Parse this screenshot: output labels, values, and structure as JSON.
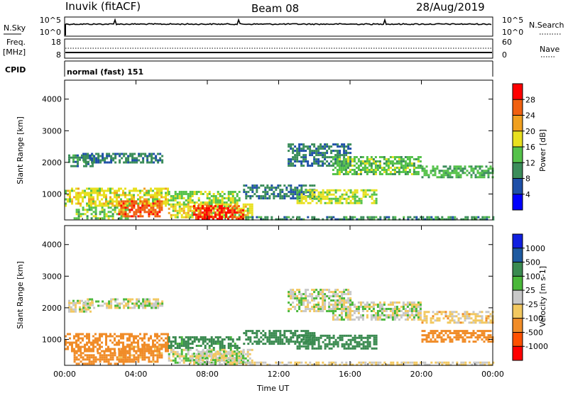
{
  "header": {
    "station": "Inuvik (fitACF)",
    "beam": "Beam 08",
    "date": "28/Aug/2019"
  },
  "labels": {
    "nsky": "N.Sky",
    "nsearch": "N.Search",
    "freq_top": "Freq.",
    "freq_unit": "[MHz]",
    "nave": "Nave",
    "cpid": "CPID",
    "cpid_value": "normal (fast) 151",
    "noise_ticks_left": [
      "10^5",
      "10^0"
    ],
    "noise_ticks_right": [
      "10^5",
      "10^0"
    ],
    "freq_ticks_left": [
      "18",
      "8"
    ],
    "freq_ticks_right": [
      "60",
      "0"
    ]
  },
  "colors": {
    "power": [
      "#0000ff",
      "#1e4fa8",
      "#3b8d5a",
      "#55c24a",
      "#e8e01f",
      "#f0a020",
      "#f06010",
      "#ff0000"
    ],
    "velocity": [
      "#ff0000",
      "#ff5000",
      "#f08c28",
      "#f2c860",
      "#c8c8c8",
      "#4ab83a",
      "#3a8a50",
      "#1e5aa0",
      "#1020e0"
    ]
  },
  "chart_data": [
    {
      "type": "heatmap",
      "title": "Power",
      "ylabel": "Slant Range [km]",
      "ylim": [
        180,
        4600
      ],
      "yticks": [
        "1000",
        "2000",
        "3000",
        "4000"
      ],
      "xticks": [
        "00:00",
        "04:00",
        "08:00",
        "12:00",
        "16:00",
        "20:00",
        "00:00"
      ],
      "colorbar_label": "Power [dB]",
      "colorbar_ticks": [
        "4",
        "8",
        "12",
        "16",
        "20",
        "24",
        "28"
      ],
      "colorbar_range": [
        0,
        32
      ],
      "regions": [
        {
          "t": [
            0.2,
            1.6
          ],
          "r": [
            1900,
            2250
          ],
          "v": 10
        },
        {
          "t": [
            1.0,
            5.5
          ],
          "r": [
            2000,
            2300
          ],
          "v": 9
        },
        {
          "t": [
            0.0,
            5.8
          ],
          "r": [
            600,
            1200
          ],
          "v": 18
        },
        {
          "t": [
            0.5,
            3.5
          ],
          "r": [
            250,
            600
          ],
          "v": 14
        },
        {
          "t": [
            3.0,
            5.5
          ],
          "r": [
            300,
            800
          ],
          "v": 26
        },
        {
          "t": [
            5.8,
            9.8
          ],
          "r": [
            700,
            1100
          ],
          "v": 15
        },
        {
          "t": [
            5.8,
            10.5
          ],
          "r": [
            250,
            700
          ],
          "v": 18
        },
        {
          "t": [
            7.2,
            10.0
          ],
          "r": [
            180,
            650
          ],
          "v": 29
        },
        {
          "t": [
            10.0,
            14.0
          ],
          "r": [
            850,
            1300
          ],
          "v": 9
        },
        {
          "t": [
            13.0,
            17.5
          ],
          "r": [
            700,
            1150
          ],
          "v": 17
        },
        {
          "t": [
            12.5,
            16.0
          ],
          "r": [
            1900,
            2600
          ],
          "v": 9
        },
        {
          "t": [
            15.0,
            20.0
          ],
          "r": [
            1600,
            2200
          ],
          "v": 14
        },
        {
          "t": [
            20.0,
            24.0
          ],
          "r": [
            1550,
            1900
          ],
          "v": 13
        },
        {
          "t": [
            10.0,
            24.0
          ],
          "r": [
            180,
            300
          ],
          "v": 10
        }
      ]
    },
    {
      "type": "heatmap",
      "title": "Velocity",
      "ylabel": "Slant Range [km]",
      "ylim": [
        180,
        4600
      ],
      "yticks": [
        "1000",
        "2000",
        "3000",
        "4000"
      ],
      "xticks": [
        "00:00",
        "04:00",
        "08:00",
        "12:00",
        "16:00",
        "20:00",
        "00:00"
      ],
      "xlabel": "Time UT",
      "colorbar_label": "Velocity [m s-1]",
      "colorbar_ticks": [
        "1000",
        "500",
        "100",
        "25",
        "-25",
        "-100",
        "-500",
        "-1000"
      ],
      "regions": [
        {
          "t": [
            0.2,
            1.6
          ],
          "r": [
            1900,
            2250
          ],
          "v": -25
        },
        {
          "t": [
            1.0,
            5.5
          ],
          "r": [
            2000,
            2300
          ],
          "v": 0
        },
        {
          "t": [
            0.0,
            5.8
          ],
          "r": [
            600,
            1200
          ],
          "v": -300
        },
        {
          "t": [
            0.5,
            3.5
          ],
          "r": [
            250,
            600
          ],
          "v": -200
        },
        {
          "t": [
            3.0,
            5.5
          ],
          "r": [
            300,
            800
          ],
          "v": -150
        },
        {
          "t": [
            5.8,
            9.8
          ],
          "r": [
            700,
            1100
          ],
          "v": 150
        },
        {
          "t": [
            5.8,
            10.5
          ],
          "r": [
            250,
            700
          ],
          "v": 0
        },
        {
          "t": [
            7.2,
            10.0
          ],
          "r": [
            180,
            650
          ],
          "v": 0
        },
        {
          "t": [
            10.0,
            14.0
          ],
          "r": [
            850,
            1300
          ],
          "v": 200
        },
        {
          "t": [
            13.0,
            17.5
          ],
          "r": [
            700,
            1150
          ],
          "v": 300
        },
        {
          "t": [
            12.5,
            16.0
          ],
          "r": [
            1900,
            2600
          ],
          "v": 0
        },
        {
          "t": [
            15.0,
            20.0
          ],
          "r": [
            1600,
            2200
          ],
          "v": 0
        },
        {
          "t": [
            20.0,
            24.0
          ],
          "r": [
            1550,
            1900
          ],
          "v": -50
        },
        {
          "t": [
            20.0,
            24.0
          ],
          "r": [
            900,
            1300
          ],
          "v": -300
        },
        {
          "t": [
            10.0,
            24.0
          ],
          "r": [
            180,
            300
          ],
          "v": -40
        }
      ]
    }
  ]
}
